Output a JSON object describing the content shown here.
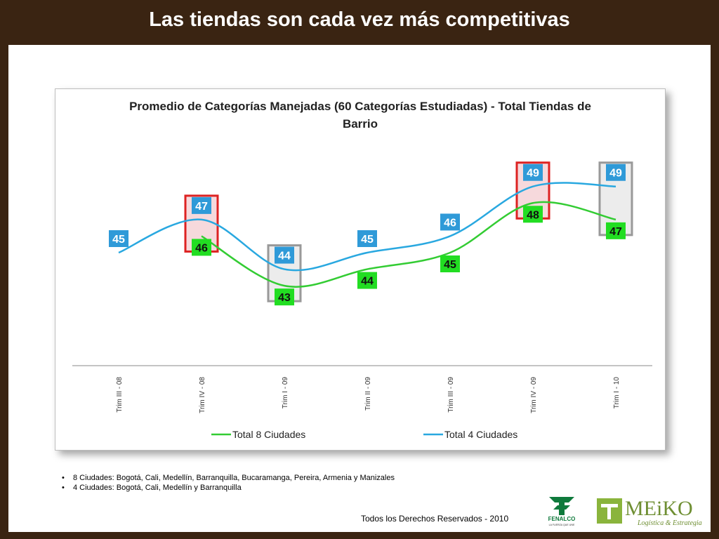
{
  "slide": {
    "title": "Las tiendas son cada vez más competitivas",
    "notes": [
      "8 Ciudades: Bogotá, Cali, Medellín, Barranquilla, Bucaramanga, Pereira, Armenia y Manizales",
      "4 Ciudades: Bogotá, Cali, Medellín y Barranquilla"
    ],
    "footer": "Todos los Derechos Reservados - 2010",
    "logos": {
      "fenalco_name": "FENALCO",
      "fenalco_tagline": "LA FUERZA QUE UNE",
      "meiko_name": "MEiKO",
      "meiko_tagline": "Logística & Estrategia"
    }
  },
  "chart_data": {
    "type": "line",
    "title": "Promedio de Categorías Manejadas (60 Categorías Estudiadas) - Total Tiendas de Barrio",
    "title_lines": [
      "Promedio de Categorías Manejadas (60 Categorías Estudiadas) - Total Tiendas de",
      "Barrio"
    ],
    "categories": [
      "Trim III - 08",
      "Trim IV - 08",
      "Trim I - 09",
      "Trim II - 09",
      "Trim III - 09",
      "Trim IV - 09",
      "Trim I - 10"
    ],
    "series": [
      {
        "name": "Total 8 Ciudades",
        "color": "#33cc33",
        "label_color": "#22dd22",
        "values": [
          null,
          46,
          43,
          44,
          45,
          48,
          47
        ]
      },
      {
        "name": "Total 4 Ciudades",
        "color": "#29a8e0",
        "label_color": "#2f9ad8",
        "values": [
          45,
          47,
          44,
          45,
          46,
          49,
          49
        ]
      }
    ],
    "highlight_boxes": [
      {
        "category": "Trim IV - 08",
        "color": "#dd2222"
      },
      {
        "category": "Trim I - 09",
        "color": "#999999"
      },
      {
        "category": "Trim IV - 09",
        "color": "#dd2222"
      },
      {
        "category": "Trim I - 10",
        "color": "#999999"
      }
    ],
    "legend_position": "bottom",
    "grid": false
  }
}
